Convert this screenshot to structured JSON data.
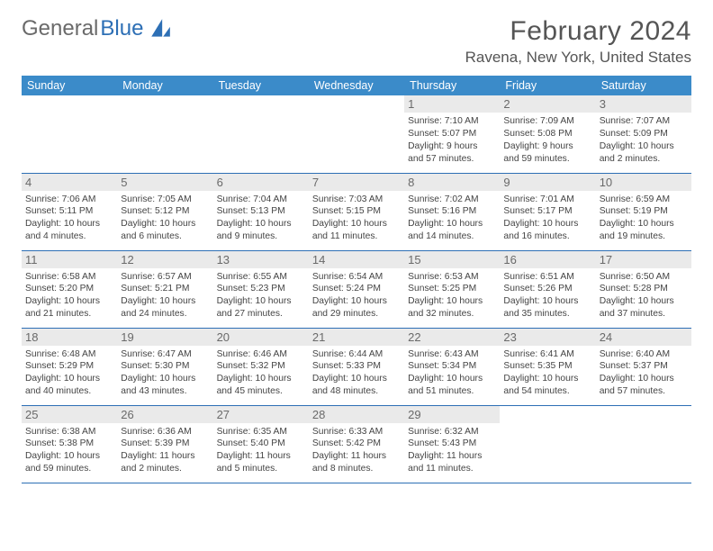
{
  "logo": {
    "text1": "General",
    "text2": "Blue"
  },
  "title": "February 2024",
  "location": "Ravena, New York, United States",
  "header_bg": "#3b8bc9",
  "border_color": "#2d6fb5",
  "daynum_bg": "#eaeaea",
  "dow": [
    "Sunday",
    "Monday",
    "Tuesday",
    "Wednesday",
    "Thursday",
    "Friday",
    "Saturday"
  ],
  "weeks": [
    [
      null,
      null,
      null,
      null,
      {
        "n": "1",
        "sr": "7:10 AM",
        "ss": "5:07 PM",
        "d1": "9 hours",
        "d2": "and 57 minutes."
      },
      {
        "n": "2",
        "sr": "7:09 AM",
        "ss": "5:08 PM",
        "d1": "9 hours",
        "d2": "and 59 minutes."
      },
      {
        "n": "3",
        "sr": "7:07 AM",
        "ss": "5:09 PM",
        "d1": "10 hours",
        "d2": "and 2 minutes."
      }
    ],
    [
      {
        "n": "4",
        "sr": "7:06 AM",
        "ss": "5:11 PM",
        "d1": "10 hours",
        "d2": "and 4 minutes."
      },
      {
        "n": "5",
        "sr": "7:05 AM",
        "ss": "5:12 PM",
        "d1": "10 hours",
        "d2": "and 6 minutes."
      },
      {
        "n": "6",
        "sr": "7:04 AM",
        "ss": "5:13 PM",
        "d1": "10 hours",
        "d2": "and 9 minutes."
      },
      {
        "n": "7",
        "sr": "7:03 AM",
        "ss": "5:15 PM",
        "d1": "10 hours",
        "d2": "and 11 minutes."
      },
      {
        "n": "8",
        "sr": "7:02 AM",
        "ss": "5:16 PM",
        "d1": "10 hours",
        "d2": "and 14 minutes."
      },
      {
        "n": "9",
        "sr": "7:01 AM",
        "ss": "5:17 PM",
        "d1": "10 hours",
        "d2": "and 16 minutes."
      },
      {
        "n": "10",
        "sr": "6:59 AM",
        "ss": "5:19 PM",
        "d1": "10 hours",
        "d2": "and 19 minutes."
      }
    ],
    [
      {
        "n": "11",
        "sr": "6:58 AM",
        "ss": "5:20 PM",
        "d1": "10 hours",
        "d2": "and 21 minutes."
      },
      {
        "n": "12",
        "sr": "6:57 AM",
        "ss": "5:21 PM",
        "d1": "10 hours",
        "d2": "and 24 minutes."
      },
      {
        "n": "13",
        "sr": "6:55 AM",
        "ss": "5:23 PM",
        "d1": "10 hours",
        "d2": "and 27 minutes."
      },
      {
        "n": "14",
        "sr": "6:54 AM",
        "ss": "5:24 PM",
        "d1": "10 hours",
        "d2": "and 29 minutes."
      },
      {
        "n": "15",
        "sr": "6:53 AM",
        "ss": "5:25 PM",
        "d1": "10 hours",
        "d2": "and 32 minutes."
      },
      {
        "n": "16",
        "sr": "6:51 AM",
        "ss": "5:26 PM",
        "d1": "10 hours",
        "d2": "and 35 minutes."
      },
      {
        "n": "17",
        "sr": "6:50 AM",
        "ss": "5:28 PM",
        "d1": "10 hours",
        "d2": "and 37 minutes."
      }
    ],
    [
      {
        "n": "18",
        "sr": "6:48 AM",
        "ss": "5:29 PM",
        "d1": "10 hours",
        "d2": "and 40 minutes."
      },
      {
        "n": "19",
        "sr": "6:47 AM",
        "ss": "5:30 PM",
        "d1": "10 hours",
        "d2": "and 43 minutes."
      },
      {
        "n": "20",
        "sr": "6:46 AM",
        "ss": "5:32 PM",
        "d1": "10 hours",
        "d2": "and 45 minutes."
      },
      {
        "n": "21",
        "sr": "6:44 AM",
        "ss": "5:33 PM",
        "d1": "10 hours",
        "d2": "and 48 minutes."
      },
      {
        "n": "22",
        "sr": "6:43 AM",
        "ss": "5:34 PM",
        "d1": "10 hours",
        "d2": "and 51 minutes."
      },
      {
        "n": "23",
        "sr": "6:41 AM",
        "ss": "5:35 PM",
        "d1": "10 hours",
        "d2": "and 54 minutes."
      },
      {
        "n": "24",
        "sr": "6:40 AM",
        "ss": "5:37 PM",
        "d1": "10 hours",
        "d2": "and 57 minutes."
      }
    ],
    [
      {
        "n": "25",
        "sr": "6:38 AM",
        "ss": "5:38 PM",
        "d1": "10 hours",
        "d2": "and 59 minutes."
      },
      {
        "n": "26",
        "sr": "6:36 AM",
        "ss": "5:39 PM",
        "d1": "11 hours",
        "d2": "and 2 minutes."
      },
      {
        "n": "27",
        "sr": "6:35 AM",
        "ss": "5:40 PM",
        "d1": "11 hours",
        "d2": "and 5 minutes."
      },
      {
        "n": "28",
        "sr": "6:33 AM",
        "ss": "5:42 PM",
        "d1": "11 hours",
        "d2": "and 8 minutes."
      },
      {
        "n": "29",
        "sr": "6:32 AM",
        "ss": "5:43 PM",
        "d1": "11 hours",
        "d2": "and 11 minutes."
      },
      null,
      null
    ]
  ]
}
